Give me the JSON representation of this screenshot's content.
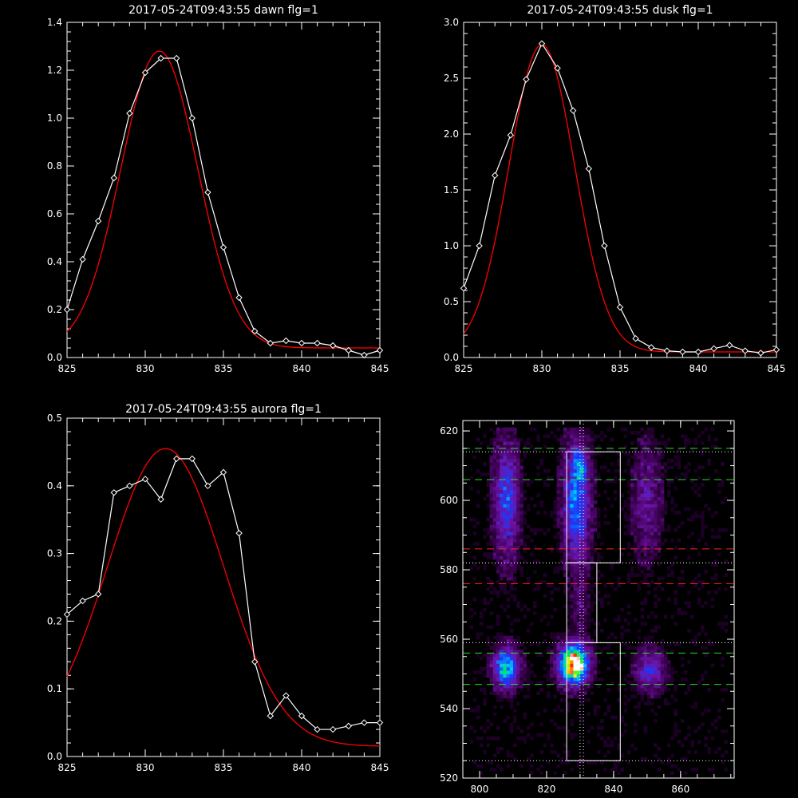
{
  "chart_data": [
    {
      "type": "line",
      "title": "2017-05-24T09:43:55 dawn flg=1",
      "xlim": [
        825,
        845
      ],
      "ylim": [
        0,
        1.4
      ],
      "xticks": [
        825,
        830,
        835,
        840,
        845
      ],
      "xtick_labels": [
        "825",
        "830",
        "835",
        "840",
        "845"
      ],
      "yticks": [
        0,
        0.2,
        0.4,
        0.6,
        0.8,
        1.0,
        1.2,
        1.4
      ],
      "ytick_labels": [
        "0.0",
        "0.2",
        "0.4",
        "0.6",
        "0.8",
        "1.0",
        "1.2",
        "1.4"
      ],
      "colors": {
        "data": "#ffffff",
        "fit": "#ff0000"
      },
      "series": [
        {
          "style": "data-with-diamonds",
          "x": [
            825,
            826,
            827,
            828,
            829,
            830,
            831,
            832,
            833,
            834,
            835,
            836,
            837,
            838,
            839,
            840,
            841,
            842,
            843,
            844,
            845
          ],
          "y": [
            0.2,
            0.41,
            0.57,
            0.75,
            1.02,
            1.19,
            1.25,
            1.25,
            1.0,
            0.69,
            0.46,
            0.25,
            0.11,
            0.06,
            0.07,
            0.06,
            0.06,
            0.05,
            0.03,
            0.01,
            0.03
          ]
        },
        {
          "style": "gaussian-fit",
          "amp": 1.24,
          "center": 830.9,
          "sigma": 2.45,
          "offset": 0.04
        }
      ]
    },
    {
      "type": "line",
      "title": "2017-05-24T09:43:55 dusk flg=1",
      "xlim": [
        825,
        845
      ],
      "ylim": [
        0,
        3.0
      ],
      "xticks": [
        825,
        830,
        835,
        840,
        845
      ],
      "xtick_labels": [
        "825",
        "830",
        "835",
        "840",
        "845"
      ],
      "yticks": [
        0,
        0.5,
        1.0,
        1.5,
        2.0,
        2.5,
        3.0
      ],
      "ytick_labels": [
        "0.0",
        "0.5",
        "1.0",
        "1.5",
        "2.0",
        "2.5",
        "3.0"
      ],
      "colors": {
        "data": "#ffffff",
        "fit": "#ff0000"
      },
      "series": [
        {
          "style": "data-with-diamonds",
          "x": [
            825,
            826,
            827,
            828,
            829,
            830,
            831,
            832,
            833,
            834,
            835,
            836,
            837,
            838,
            839,
            840,
            841,
            842,
            843,
            844,
            845
          ],
          "y": [
            0.62,
            1.0,
            1.63,
            1.99,
            2.49,
            2.81,
            2.59,
            2.21,
            1.69,
            1.0,
            0.45,
            0.17,
            0.09,
            0.06,
            0.05,
            0.05,
            0.08,
            0.11,
            0.06,
            0.04,
            0.07
          ]
        },
        {
          "style": "gaussian-fit",
          "amp": 2.75,
          "center": 830.0,
          "sigma": 2.1,
          "offset": 0.05
        }
      ]
    },
    {
      "type": "line",
      "title": "2017-05-24T09:43:55 aurora flg=1",
      "xlim": [
        825,
        845
      ],
      "ylim": [
        0,
        0.5
      ],
      "xticks": [
        825,
        830,
        835,
        840,
        845
      ],
      "xtick_labels": [
        "825",
        "830",
        "835",
        "840",
        "845"
      ],
      "yticks": [
        0,
        0.1,
        0.2,
        0.3,
        0.4,
        0.5
      ],
      "ytick_labels": [
        "0.0",
        "0.1",
        "0.2",
        "0.3",
        "0.4",
        "0.5"
      ],
      "colors": {
        "data": "#ffffff",
        "fit": "#ff0000"
      },
      "series": [
        {
          "style": "data-with-diamonds",
          "x": [
            825,
            826,
            827,
            828,
            829,
            830,
            831,
            832,
            833,
            834,
            835,
            836,
            837,
            838,
            839,
            840,
            841,
            842,
            843,
            844,
            845
          ],
          "y": [
            0.21,
            0.23,
            0.24,
            0.39,
            0.4,
            0.41,
            0.38,
            0.44,
            0.44,
            0.4,
            0.42,
            0.33,
            0.14,
            0.06,
            0.09,
            0.06,
            0.04,
            0.04,
            0.045,
            0.05,
            0.05
          ]
        },
        {
          "style": "gaussian-fit",
          "amp": 0.44,
          "center": 831.3,
          "sigma": 3.7,
          "offset": 0.015
        }
      ]
    },
    {
      "type": "heatmap",
      "title": "",
      "xlim": [
        795,
        876
      ],
      "ylim": [
        520,
        623
      ],
      "xticks": [
        800,
        820,
        840,
        860
      ],
      "xtick_labels": [
        "800",
        "820",
        "840",
        "860"
      ],
      "yticks": [
        520,
        540,
        560,
        580,
        600,
        620
      ],
      "ytick_labels": [
        "520",
        "540",
        "560",
        "580",
        "600",
        "620"
      ],
      "colormap": "rainbow",
      "blobs": [
        {
          "x": 808,
          "y": 552,
          "sx": 2.4,
          "sy": 3.5,
          "amp": 0.55
        },
        {
          "x": 828,
          "y": 553,
          "sx": 2.6,
          "sy": 3.5,
          "amp": 1.0
        },
        {
          "x": 830,
          "y": 552,
          "sx": 1.0,
          "sy": 1.2,
          "amp": 0.5
        },
        {
          "x": 851,
          "y": 551,
          "sx": 2.6,
          "sy": 3.5,
          "amp": 0.28
        },
        {
          "x": 808,
          "y": 600,
          "sx": 2.3,
          "sy": 10,
          "amp": 0.32
        },
        {
          "x": 829,
          "y": 600,
          "sx": 2.4,
          "sy": 11,
          "amp": 0.42
        },
        {
          "x": 830,
          "y": 610,
          "sx": 1.2,
          "sy": 3,
          "amp": 0.25
        },
        {
          "x": 850,
          "y": 600,
          "sx": 2.6,
          "sy": 10,
          "amp": 0.15
        },
        {
          "x": 830,
          "y": 570,
          "sx": 1.5,
          "sy": 6,
          "amp": 0.08
        }
      ],
      "overlays": {
        "white_boxes": [
          {
            "x0": 826,
            "x1": 842,
            "y0": 525,
            "y1": 559
          },
          {
            "x0": 826,
            "x1": 835,
            "y0": 559,
            "y1": 582
          },
          {
            "x0": 826,
            "x1": 842,
            "y0": 582,
            "y1": 614
          }
        ],
        "white_solid_hlines": [
          559,
          582
        ],
        "white_dotted_hlines": [
          525,
          559,
          582,
          614
        ],
        "white_dotted_vlines": [
          830,
          831
        ],
        "green_dashed_hlines": [
          547,
          556,
          606,
          615
        ],
        "red_dashed_hlines": [
          576,
          586
        ]
      }
    }
  ]
}
